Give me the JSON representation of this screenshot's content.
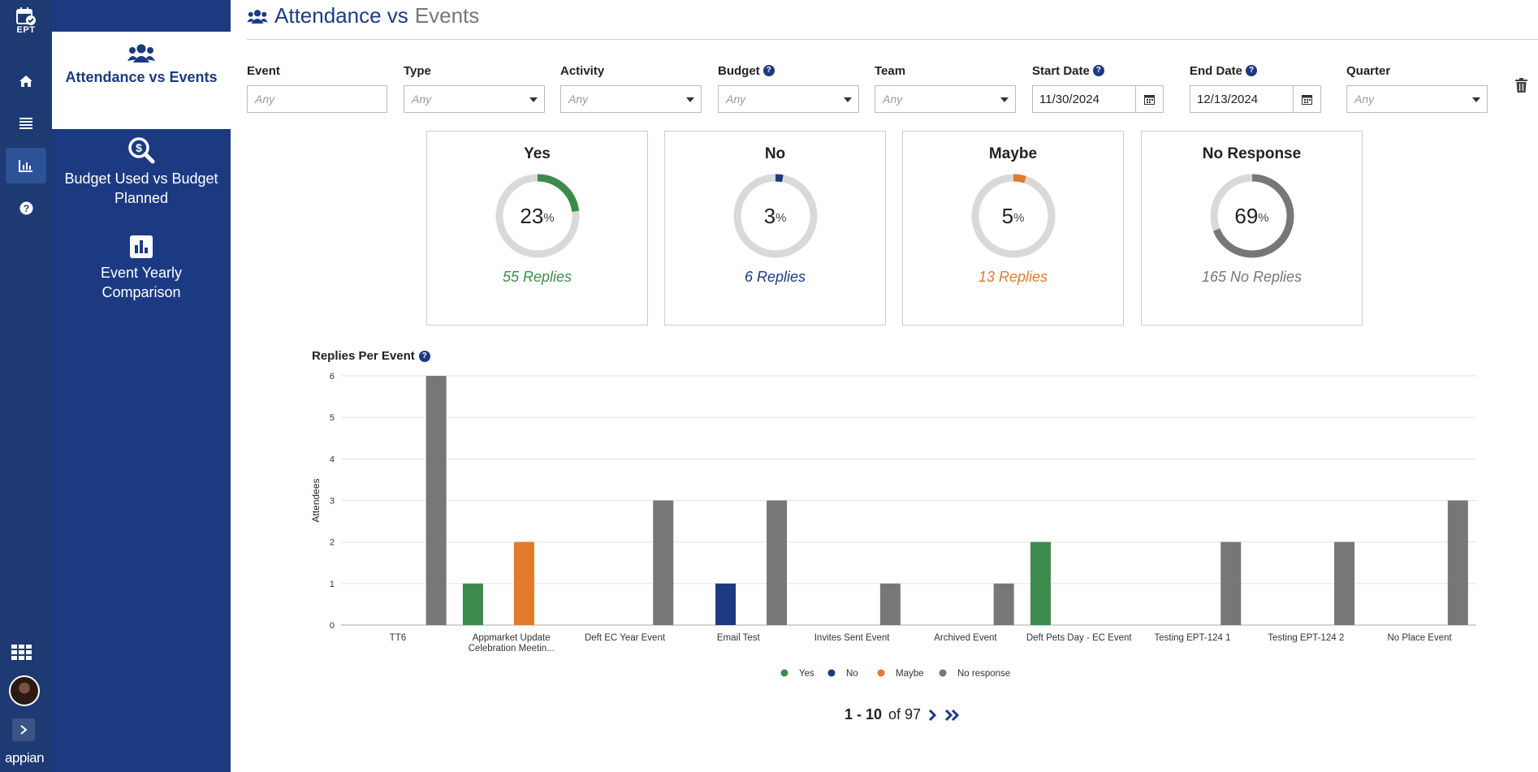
{
  "rail": {
    "logo_text": "EPT",
    "brand": "appian"
  },
  "sidenav": {
    "items": [
      {
        "label": "Attendance vs Events",
        "icon": "users-icon",
        "active": true
      },
      {
        "label": "Budget Used vs Budget Planned",
        "icon": "search-dollar-icon",
        "active": false
      },
      {
        "label": "Event Yearly Comparison",
        "icon": "bar-chart-icon",
        "active": false
      }
    ]
  },
  "page": {
    "title_main": "Attendance vs",
    "title_light": "Events"
  },
  "filters": {
    "event": {
      "label": "Event",
      "placeholder": "Any"
    },
    "type": {
      "label": "Type",
      "value": "Any"
    },
    "activity": {
      "label": "Activity",
      "value": "Any"
    },
    "budget": {
      "label": "Budget",
      "value": "Any"
    },
    "team": {
      "label": "Team",
      "value": "Any"
    },
    "start_date": {
      "label": "Start Date",
      "value": "11/30/2024"
    },
    "end_date": {
      "label": "End Date",
      "value": "12/13/2024"
    },
    "quarter": {
      "label": "Quarter",
      "value": "Any"
    }
  },
  "cards": [
    {
      "title": "Yes",
      "percent": 23,
      "percent_unit": "%",
      "replies": "55 Replies",
      "color": "#3d8b4c"
    },
    {
      "title": "No",
      "percent": 3,
      "percent_unit": "%",
      "replies": "6 Replies",
      "color": "#1c3a82"
    },
    {
      "title": "Maybe",
      "percent": 5,
      "percent_unit": "%",
      "replies": "13 Replies",
      "color": "#e07b2f"
    },
    {
      "title": "No Response",
      "percent": 69,
      "percent_unit": "%",
      "replies": "165 No Replies",
      "color": "#777777"
    }
  ],
  "chart_title": "Replies Per Event",
  "chart_data": {
    "type": "bar",
    "ylabel": "Attendees",
    "ylim": [
      0,
      6
    ],
    "yticks": [
      0,
      1,
      2,
      3,
      4,
      5,
      6
    ],
    "categories": [
      "TT6",
      "Appmarket Update Celebration Meetin...",
      "Deft EC Year Event",
      "Email Test",
      "Invites Sent Event",
      "Archived Event",
      "Deft Pets Day - EC Event",
      "Testing EPT-124 1",
      "Testing EPT-124 2",
      "No Place Event"
    ],
    "series": [
      {
        "name": "Yes",
        "color": "#3d8b4c",
        "values": [
          0,
          1,
          0,
          0,
          0,
          0,
          2,
          0,
          0,
          0
        ]
      },
      {
        "name": "No",
        "color": "#1c3a82",
        "values": [
          0,
          0,
          0,
          1,
          0,
          0,
          0,
          0,
          0,
          0
        ]
      },
      {
        "name": "Maybe",
        "color": "#e07b2f",
        "values": [
          0,
          2,
          0,
          0,
          0,
          0,
          0,
          0,
          0,
          0
        ]
      },
      {
        "name": "No response",
        "color": "#777777",
        "values": [
          6,
          0,
          3,
          3,
          1,
          1,
          0,
          2,
          2,
          3
        ]
      }
    ],
    "grid": true,
    "legend": "bottom-center"
  },
  "pager": {
    "range": "1 - 10",
    "of_text": "of 97"
  }
}
